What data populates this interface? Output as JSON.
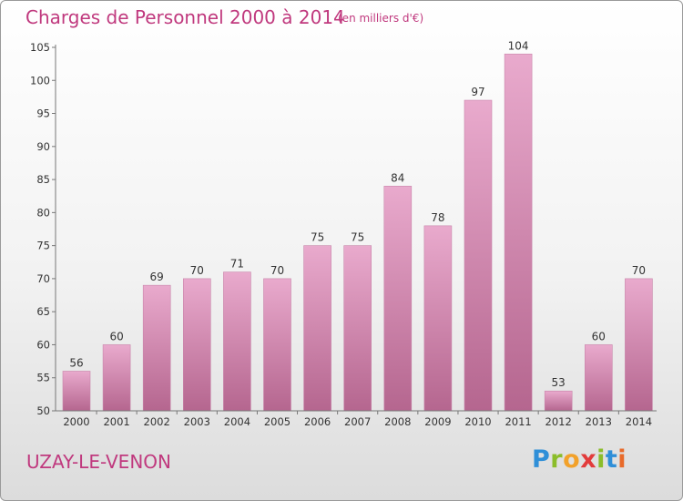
{
  "header": {
    "title": "Charges de Personnel 2000 à 2014",
    "subtitle": "(en milliers d'€)"
  },
  "footer": {
    "place": "UZAY-LE-VENON",
    "logo": [
      "P",
      "r",
      "o",
      "x",
      "i",
      "t",
      "i"
    ]
  },
  "colors": {
    "title": "#c0397e",
    "bar_top": "#e9aacd",
    "bar_bottom": "#b5668f",
    "logo": [
      "#2f8fd8",
      "#8bbd2a",
      "#f2a12a",
      "#e23b3b",
      "#8bbd2a",
      "#2f8fd8",
      "#e86a2a"
    ]
  },
  "chart_data": {
    "type": "bar",
    "categories": [
      "2000",
      "2001",
      "2002",
      "2003",
      "2004",
      "2005",
      "2006",
      "2007",
      "2008",
      "2009",
      "2010",
      "2011",
      "2012",
      "2013",
      "2014"
    ],
    "values": [
      56,
      60,
      69,
      70,
      71,
      70,
      75,
      75,
      84,
      78,
      97,
      104,
      53,
      60,
      70
    ],
    "title": "Charges de Personnel 2000 à 2014",
    "subtitle": "(en milliers d'€)",
    "xlabel": "",
    "ylabel": "",
    "ylim": [
      50,
      105
    ],
    "yticks": [
      50,
      55,
      60,
      65,
      70,
      75,
      80,
      85,
      90,
      95,
      100,
      105
    ],
    "grid": false,
    "data_labels": true
  }
}
